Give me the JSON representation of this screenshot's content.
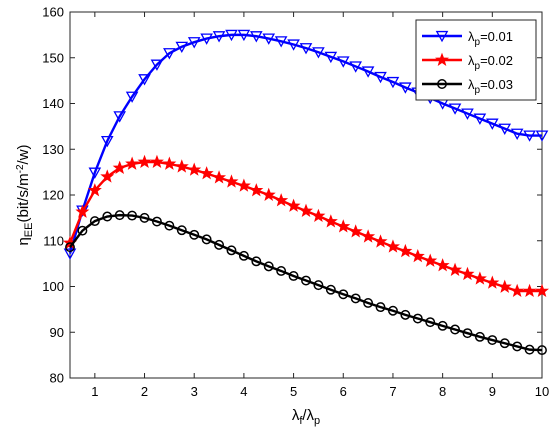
{
  "chart_data": {
    "type": "line",
    "title": "",
    "xlabel": {
      "main": "λ",
      "sub": "f",
      "sep": "/",
      "main2": "λ",
      "sub2": "p"
    },
    "ylabel": {
      "main": "η",
      "sub": "EE",
      "unit_pre": "(bit/s/m",
      "unit_sup": "-2",
      "unit_post": "/w)"
    },
    "xlim": [
      0.5,
      10
    ],
    "ylim": [
      80,
      160
    ],
    "xticks": [
      1,
      2,
      3,
      4,
      5,
      6,
      7,
      8,
      9,
      10
    ],
    "yticks": [
      80,
      90,
      100,
      110,
      120,
      130,
      140,
      150,
      160
    ],
    "grid": false,
    "legend_position": "top-right",
    "series": [
      {
        "name": "λp=0.01",
        "legend": {
          "main": "λ",
          "sub": "p",
          "rest": "=0.01"
        },
        "color": "#0000ff",
        "marker": "triangle-down",
        "x": [
          0.5,
          0.75,
          1,
          1.25,
          1.5,
          1.75,
          2,
          2.25,
          2.5,
          2.75,
          3,
          3.25,
          3.5,
          3.75,
          4,
          4.25,
          4.5,
          4.75,
          5,
          5.25,
          5.5,
          5.75,
          6,
          6.25,
          6.5,
          6.75,
          7,
          7.25,
          7.5,
          7.75,
          8,
          8.25,
          8.5,
          8.75,
          9,
          9.25,
          9.5,
          9.75,
          10
        ],
        "y": [
          107.2,
          116.6,
          124.9,
          131.8,
          137.2,
          141.5,
          145.3,
          148.5,
          151.0,
          152.4,
          153.4,
          154.2,
          154.7,
          155.0,
          155.0,
          154.7,
          154.2,
          153.6,
          152.9,
          152.1,
          151.2,
          150.2,
          149.2,
          148.1,
          147.0,
          145.8,
          144.7,
          143.5,
          142.4,
          141.2,
          140.0,
          138.9,
          137.8,
          136.7,
          135.6,
          134.5,
          133.4,
          133.0,
          133.0
        ]
      },
      {
        "name": "λp=0.02",
        "legend": {
          "main": "λ",
          "sub": "p",
          "rest": "=0.02"
        },
        "color": "#ff0000",
        "marker": "star",
        "x": [
          0.5,
          0.75,
          1,
          1.25,
          1.5,
          1.75,
          2,
          2.25,
          2.5,
          2.75,
          3,
          3.25,
          3.5,
          3.75,
          4,
          4.25,
          4.5,
          4.75,
          5,
          5.25,
          5.5,
          5.75,
          6,
          6.25,
          6.5,
          6.75,
          7,
          7.25,
          7.5,
          7.75,
          8,
          8.25,
          8.5,
          8.75,
          9,
          9.25,
          9.5,
          9.75,
          10
        ],
        "y": [
          109.5,
          116.3,
          121.0,
          124.0,
          125.9,
          126.8,
          127.2,
          127.2,
          126.8,
          126.2,
          125.5,
          124.7,
          123.8,
          122.9,
          122.0,
          121.0,
          120.0,
          118.8,
          117.6,
          116.5,
          115.4,
          114.2,
          113.1,
          112.0,
          110.9,
          109.8,
          108.7,
          107.7,
          106.6,
          105.6,
          104.6,
          103.6,
          102.7,
          101.7,
          100.8,
          99.9,
          99.0,
          99.0,
          99.0
        ]
      },
      {
        "name": "λp=0.03",
        "legend": {
          "main": "λ",
          "sub": "p",
          "rest": "=0.03"
        },
        "color": "#000000",
        "marker": "circle",
        "x": [
          0.5,
          0.75,
          1,
          1.25,
          1.5,
          1.75,
          2,
          2.25,
          2.5,
          2.75,
          3,
          3.25,
          3.5,
          3.75,
          4,
          4.25,
          4.5,
          4.75,
          5,
          5.25,
          5.5,
          5.75,
          6,
          6.25,
          6.5,
          6.75,
          7,
          7.25,
          7.5,
          7.75,
          8,
          8.25,
          8.5,
          8.75,
          9,
          9.25,
          9.5,
          9.75,
          10
        ],
        "y": [
          108.6,
          112.2,
          114.3,
          115.3,
          115.6,
          115.5,
          115.0,
          114.2,
          113.3,
          112.3,
          111.3,
          110.3,
          109.1,
          107.9,
          106.7,
          105.5,
          104.4,
          103.4,
          102.3,
          101.3,
          100.3,
          99.3,
          98.3,
          97.4,
          96.4,
          95.5,
          94.7,
          93.8,
          93.0,
          92.2,
          91.4,
          90.6,
          89.8,
          89.0,
          88.3,
          87.6,
          86.9,
          86.2,
          86.1
        ]
      }
    ]
  }
}
